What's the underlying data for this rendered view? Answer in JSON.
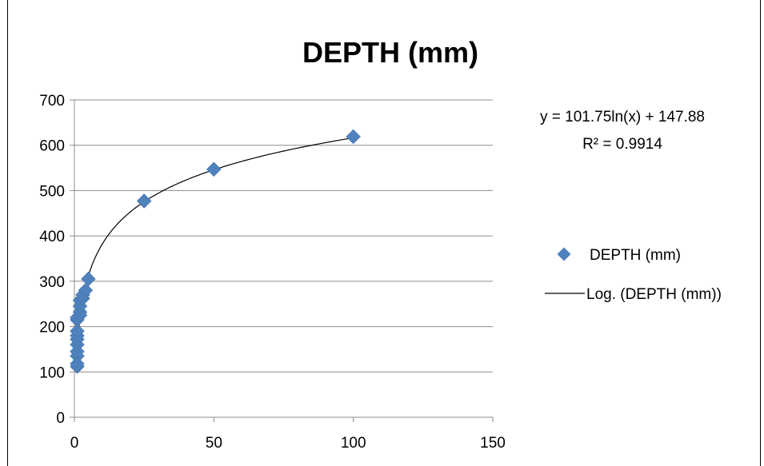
{
  "chart_data": {
    "type": "scatter",
    "title": "DEPTH (mm)",
    "xlabel": "",
    "ylabel": "",
    "xlim": [
      0,
      150
    ],
    "ylim": [
      0,
      700
    ],
    "x_ticks": [
      "0",
      "50",
      "100",
      "150"
    ],
    "y_ticks": [
      "0",
      "100",
      "200",
      "300",
      "400",
      "500",
      "600",
      "700"
    ],
    "grid": "horizontal",
    "legend_position": "right",
    "marker_color": "#4F81BD",
    "trendline_color": "#000000",
    "series": [
      {
        "name": "DEPTH (mm)",
        "marker": "diamond",
        "x": [
          1,
          1,
          1,
          1,
          1,
          1,
          1,
          1,
          1,
          1,
          2,
          2,
          2,
          2,
          3,
          3,
          4,
          5,
          25,
          50,
          100
        ],
        "y": [
          112,
          118,
          135,
          145,
          160,
          172,
          180,
          190,
          215,
          220,
          225,
          232,
          245,
          258,
          262,
          270,
          280,
          305,
          477,
          547,
          619
        ]
      }
    ],
    "trendline": {
      "name": "Log. (DEPTH (mm))",
      "type": "logarithmic",
      "a": 101.75,
      "b": 147.88,
      "x_range": [
        1,
        100
      ],
      "equation": "y = 101.75ln(x) + 147.88",
      "r_squared": "R² = 0.9914"
    }
  }
}
